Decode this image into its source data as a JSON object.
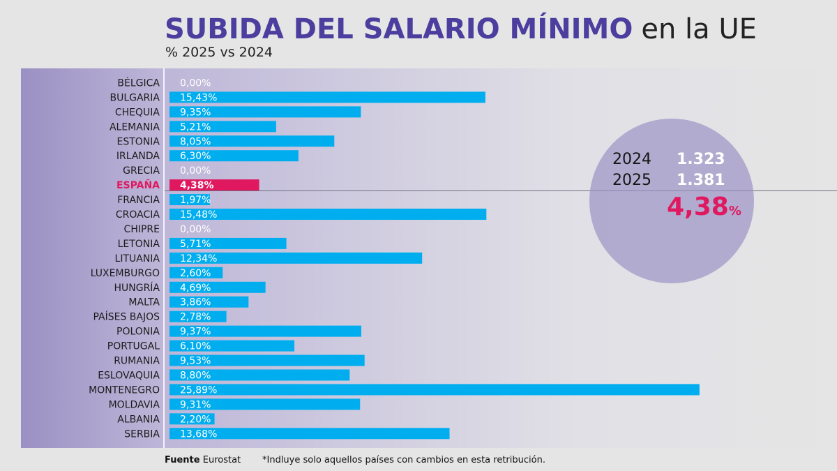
{
  "title": {
    "bold": "SUBIDA DEL SALARIO MÍNIMO",
    "light": "en la UE"
  },
  "subtitle": "% 2025 vs 2024",
  "colors": {
    "bar": "#00aeef",
    "highlight": "#e0185f",
    "title": "#4b3e9e"
  },
  "chart_data": {
    "type": "bar",
    "orientation": "horizontal",
    "title": "SUBIDA DEL SALARIO MÍNIMO en la UE",
    "subtitle": "% 2025 vs 2024",
    "xlabel": "",
    "ylabel": "",
    "xlim": [
      0,
      26
    ],
    "highlight": "ESPAÑA",
    "categories": [
      "BÉLGICA",
      "BULGARIA",
      "CHEQUIA",
      "ALEMANIA",
      "ESTONIA",
      "IRLANDA",
      "GRECIA",
      "ESPAÑA",
      "FRANCIA",
      "CROACIA",
      "CHIPRE",
      "LETONIA",
      "LITUANIA",
      "LUXEMBURGO",
      "HUNGRÍA",
      "MALTA",
      "PAÍSES BAJOS",
      "POLONIA",
      "PORTUGAL",
      "RUMANIA",
      "ESLOVAQUIA",
      "MONTENEGRO",
      "MOLDAVIA",
      "ALBANIA",
      "SERBIA"
    ],
    "values": [
      0.0,
      15.43,
      9.35,
      5.21,
      8.05,
      6.3,
      0.0,
      4.38,
      1.97,
      15.48,
      0.0,
      5.71,
      12.34,
      2.6,
      4.69,
      3.86,
      2.78,
      9.37,
      6.1,
      9.53,
      8.8,
      25.89,
      9.31,
      2.2,
      13.68
    ],
    "labels": [
      "0,00%",
      "15,43%",
      "9,35%",
      "5,21%",
      "8,05%",
      "6,30%",
      "0,00%",
      "4,38%",
      "1,97%",
      "15,48%",
      "0,00%",
      "5,71%",
      "12,34%",
      "2,60%",
      "4,69%",
      "3,86%",
      "2,78%",
      "9,37%",
      "6,10%",
      "9,53%",
      "8,80%",
      "25,89%",
      "9,31%",
      "2,20%",
      "13,68%"
    ]
  },
  "callout": {
    "row1": {
      "year": "2024",
      "value": "1.323"
    },
    "row2": {
      "year": "2025",
      "value": "1.381"
    },
    "pct": "4,38",
    "pct_symbol": "%"
  },
  "footer": {
    "source_label": "Fuente",
    "source": "Eurostat",
    "note": "*Indluye solo aquellos países con cambios en esta retribución."
  }
}
